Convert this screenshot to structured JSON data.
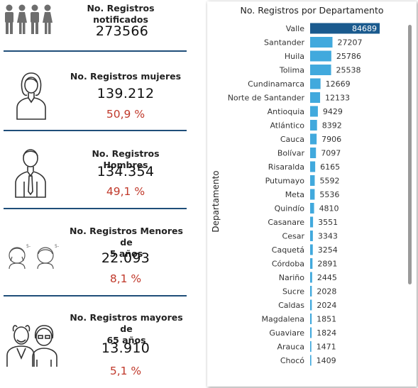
{
  "cards": [
    {
      "title_lines": [
        "No. Registros notificados"
      ],
      "value": "273566",
      "pct": "",
      "icon": "people-group-icon"
    },
    {
      "title_lines": [
        "No. Registros mujeres"
      ],
      "value": "139.212",
      "pct": "50,9 %",
      "icon": "woman-icon"
    },
    {
      "title_lines": [
        "No. Registros Hombres"
      ],
      "value": "134.354",
      "pct": "49,1 %",
      "icon": "man-icon"
    },
    {
      "title_lines": [
        "No. Registros Menores de",
        "5 años"
      ],
      "value": "22.093",
      "pct": "8,1 %",
      "icon": "children-icon",
      "icon_text": "5-"
    },
    {
      "title_lines": [
        "No. Registros mayores de",
        "65 años"
      ],
      "value": "13.910",
      "pct": "5,1 %",
      "icon": "elderly-couple-icon"
    }
  ],
  "colors": {
    "separator": "#1f4e79",
    "pct": "#c0392b",
    "bar": "#41a9dd",
    "bar_highlight": "#1a5a8e"
  },
  "chart_data": {
    "type": "bar",
    "orientation": "horizontal",
    "title": "No. Registros por Departamento",
    "ylabel": "Departamento",
    "xlabel": "",
    "categories": [
      "Valle",
      "Santander",
      "Huila",
      "Tolima",
      "Cundinamarca",
      "Norte de Santander",
      "Antioquia",
      "Atlántico",
      "Cauca",
      "Bolívar",
      "Risaralda",
      "Putumayo",
      "Meta",
      "Quindío",
      "Casanare",
      "Cesar",
      "Caquetá",
      "Córdoba",
      "Nariño",
      "Sucre",
      "Caldas",
      "Magdalena",
      "Guaviare",
      "Arauca",
      "Chocó"
    ],
    "values": [
      84689,
      27207,
      25786,
      25538,
      12669,
      12133,
      9429,
      8392,
      7906,
      7097,
      6165,
      5592,
      5536,
      4810,
      3551,
      3343,
      3254,
      2891,
      2445,
      2028,
      2024,
      1851,
      1824,
      1471,
      1409
    ],
    "data_labels": [
      "84689",
      "27207",
      "25786",
      "25538",
      "12669",
      "12133",
      "9429",
      "8392",
      "7906",
      "7097",
      "6165",
      "5592",
      "5536",
      "4810",
      "3551",
      "3343",
      "3254",
      "2891",
      "2445",
      "2028",
      "2024",
      "1851",
      "1824",
      "1471",
      "1409"
    ],
    "highlight_index": 0,
    "grid": false,
    "legend": "none"
  }
}
